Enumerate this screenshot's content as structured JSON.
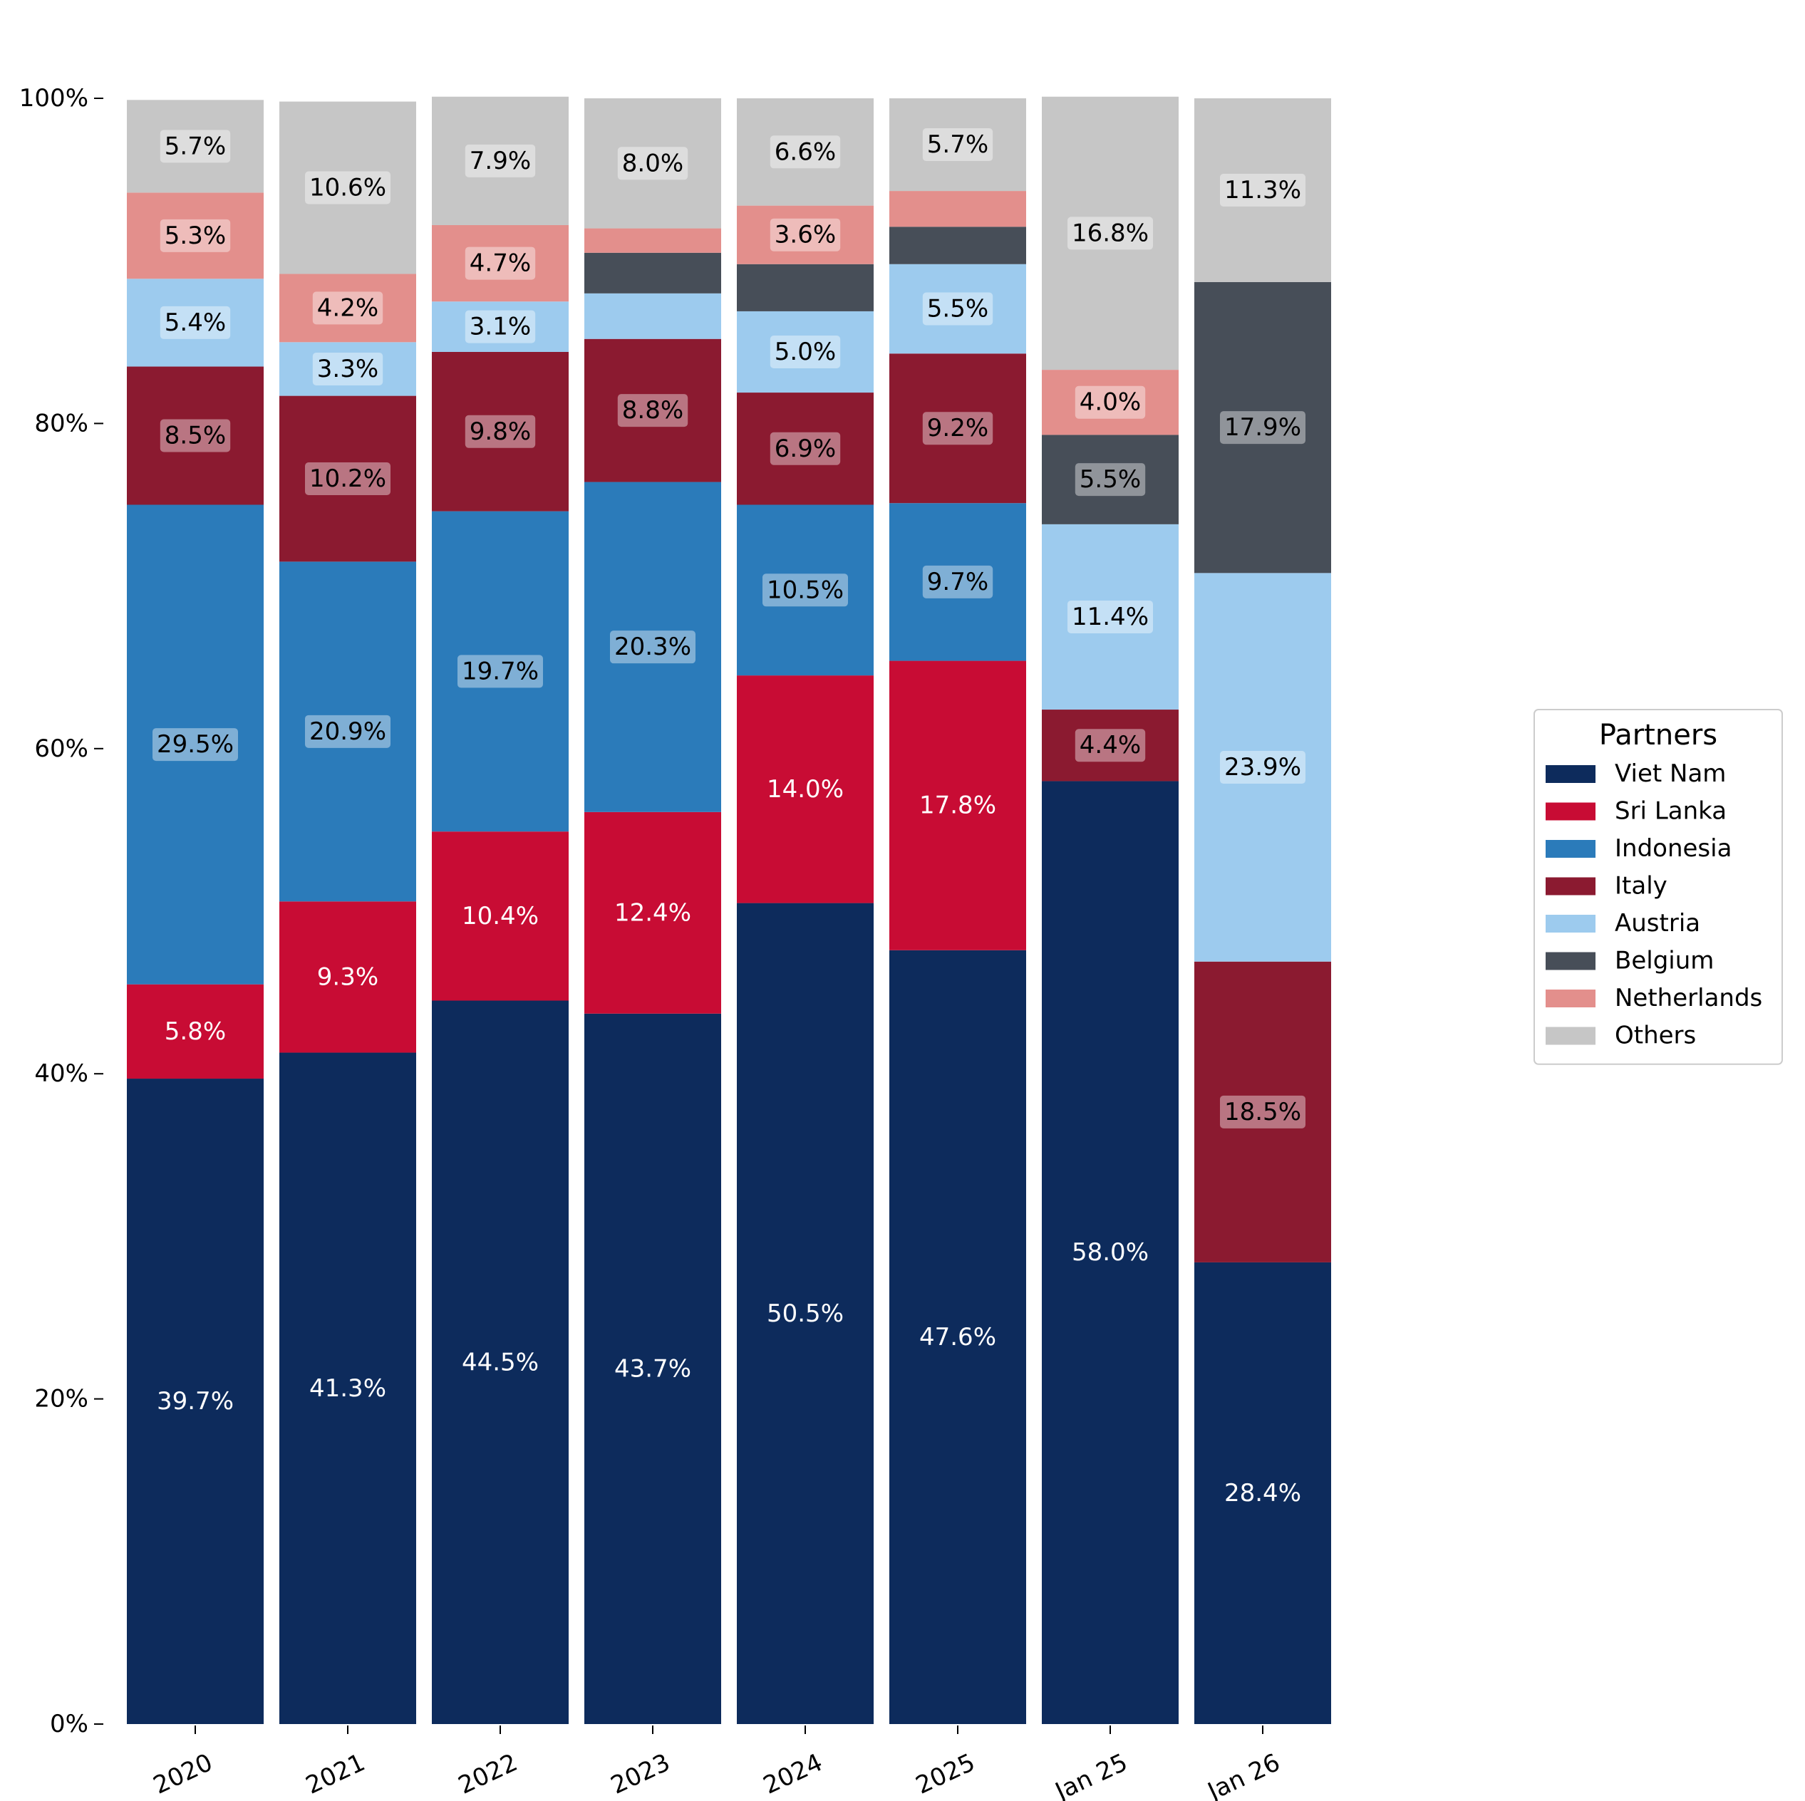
{
  "chart_data": {
    "type": "bar",
    "stacked": true,
    "categories": [
      "2020",
      "2021",
      "2022",
      "2023",
      "2024",
      "2025",
      "Jan 25",
      "Jan 26"
    ],
    "ylim": [
      0,
      100
    ],
    "yticks": [
      "0%",
      "20%",
      "40%",
      "60%",
      "80%",
      "100%"
    ],
    "series": [
      {
        "name": "Viet Nam",
        "color": "#0d2b5c",
        "label_dark": false,
        "values": [
          39.7,
          41.3,
          44.5,
          43.7,
          50.5,
          47.6,
          58.0,
          28.4
        ],
        "labels": [
          "39.7%",
          "41.3%",
          "44.5%",
          "43.7%",
          "50.5%",
          "47.6%",
          "58.0%",
          "28.4%"
        ]
      },
      {
        "name": "Sri Lanka",
        "color": "#c80c34",
        "label_dark": false,
        "values": [
          5.8,
          9.3,
          10.4,
          12.4,
          14.0,
          17.8,
          0,
          0
        ],
        "labels": [
          "5.8%",
          "9.3%",
          "10.4%",
          "12.4%",
          "14.0%",
          "17.8%",
          "",
          ""
        ]
      },
      {
        "name": "Indonesia",
        "color": "#2b7bba",
        "label_dark": true,
        "values": [
          29.5,
          20.9,
          19.7,
          20.3,
          10.5,
          9.7,
          0,
          0
        ],
        "labels": [
          "29.5%",
          "20.9%",
          "19.7%",
          "20.3%",
          "10.5%",
          "9.7%",
          "",
          ""
        ]
      },
      {
        "name": "Italy",
        "color": "#8b1a30",
        "label_dark": true,
        "values": [
          8.5,
          10.2,
          9.8,
          8.8,
          6.9,
          9.2,
          4.4,
          18.5
        ],
        "labels": [
          "8.5%",
          "10.2%",
          "9.8%",
          "8.8%",
          "6.9%",
          "9.2%",
          "4.4%",
          "18.5%"
        ]
      },
      {
        "name": "Austria",
        "color": "#9dcbee",
        "label_dark": true,
        "values": [
          5.4,
          3.3,
          3.1,
          2.8,
          5.0,
          5.5,
          11.4,
          23.9
        ],
        "labels": [
          "5.4%",
          "3.3%",
          "3.1%",
          "",
          "5.0%",
          "5.5%",
          "11.4%",
          "23.9%"
        ]
      },
      {
        "name": "Belgium",
        "color": "#474e58",
        "label_dark": true,
        "values": [
          0,
          0,
          0,
          2.5,
          2.9,
          2.3,
          5.5,
          17.9
        ],
        "labels": [
          "",
          "",
          "",
          "",
          "",
          "",
          "5.5%",
          "17.9%"
        ]
      },
      {
        "name": "Netherlands",
        "color": "#e38f8c",
        "label_dark": true,
        "values": [
          5.3,
          4.2,
          4.7,
          1.5,
          3.6,
          2.2,
          4.0,
          0
        ],
        "labels": [
          "5.3%",
          "4.2%",
          "4.7%",
          "",
          "3.6%",
          "",
          "4.0%",
          ""
        ]
      },
      {
        "name": "Others",
        "color": "#c6c6c6",
        "label_dark": true,
        "values": [
          5.7,
          10.6,
          7.9,
          8.0,
          6.6,
          5.7,
          16.8,
          11.3
        ],
        "labels": [
          "5.7%",
          "10.6%",
          "7.9%",
          "8.0%",
          "6.6%",
          "5.7%",
          "16.8%",
          "11.3%"
        ]
      }
    ],
    "legend": {
      "title": "Partners",
      "placement": "right"
    },
    "grid": false
  }
}
